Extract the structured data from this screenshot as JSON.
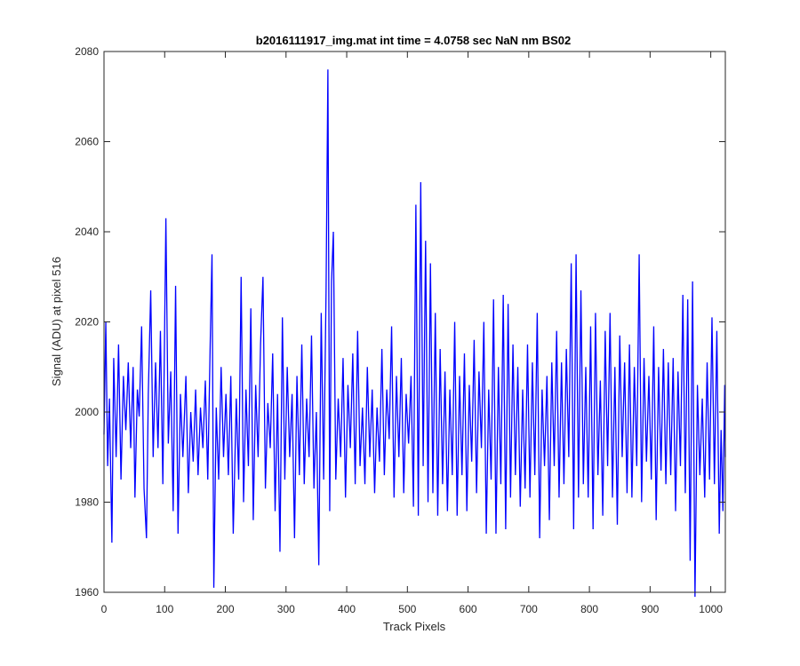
{
  "chart_data": {
    "type": "line",
    "title": "b2016111917_img.mat int time = 4.0758 sec  NaN nm BS02",
    "xlabel": "Track Pixels",
    "ylabel": "Signal (ADU) at pixel 516",
    "xlim": [
      0,
      1024
    ],
    "ylim": [
      1960,
      2080
    ],
    "xticks": [
      0,
      100,
      200,
      300,
      400,
      500,
      600,
      700,
      800,
      900,
      1000
    ],
    "yticks": [
      1960,
      1980,
      2000,
      2020,
      2040,
      2060,
      2080
    ],
    "grid": false,
    "series": [
      {
        "color": "#0000ff",
        "points": [
          [
            0,
            1995
          ],
          [
            3,
            2020
          ],
          [
            6,
            1988
          ],
          [
            9,
            2003
          ],
          [
            13,
            1971
          ],
          [
            16,
            2012
          ],
          [
            20,
            1990
          ],
          [
            24,
            2015
          ],
          [
            28,
            1985
          ],
          [
            32,
            2008
          ],
          [
            36,
            1996
          ],
          [
            40,
            2011
          ],
          [
            44,
            1992
          ],
          [
            48,
            2010
          ],
          [
            51,
            1981
          ],
          [
            55,
            2005
          ],
          [
            58,
            1999
          ],
          [
            62,
            2019
          ],
          [
            66,
            1983
          ],
          [
            70,
            1972
          ],
          [
            73,
            2004
          ],
          [
            77,
            2027
          ],
          [
            81,
            1990
          ],
          [
            85,
            2011
          ],
          [
            89,
            1992
          ],
          [
            93,
            2018
          ],
          [
            97,
            1984
          ],
          [
            102,
            2043
          ],
          [
            106,
            1993
          ],
          [
            110,
            2009
          ],
          [
            114,
            1978
          ],
          [
            118,
            2028
          ],
          [
            122,
            1973
          ],
          [
            126,
            2004
          ],
          [
            130,
            1990
          ],
          [
            135,
            2008
          ],
          [
            139,
            1982
          ],
          [
            143,
            2000
          ],
          [
            147,
            1989
          ],
          [
            151,
            2005
          ],
          [
            155,
            1986
          ],
          [
            159,
            2001
          ],
          [
            163,
            1992
          ],
          [
            167,
            2007
          ],
          [
            171,
            1985
          ],
          [
            175,
            2015
          ],
          [
            178,
            2035
          ],
          [
            181,
            1961
          ],
          [
            185,
            2001
          ],
          [
            189,
            1985
          ],
          [
            193,
            2010
          ],
          [
            197,
            1990
          ],
          [
            201,
            2004
          ],
          [
            205,
            1986
          ],
          [
            209,
            2008
          ],
          [
            213,
            1973
          ],
          [
            218,
            2003
          ],
          [
            222,
            1985
          ],
          [
            226,
            2030
          ],
          [
            230,
            1980
          ],
          [
            234,
            2005
          ],
          [
            238,
            1988
          ],
          [
            242,
            2023
          ],
          [
            246,
            1976
          ],
          [
            250,
            2006
          ],
          [
            254,
            1990
          ],
          [
            258,
            2015
          ],
          [
            262,
            2030
          ],
          [
            266,
            1983
          ],
          [
            270,
            2002
          ],
          [
            274,
            1992
          ],
          [
            278,
            2013
          ],
          [
            282,
            1978
          ],
          [
            286,
            2004
          ],
          [
            290,
            1969
          ],
          [
            294,
            2021
          ],
          [
            298,
            1985
          ],
          [
            302,
            2010
          ],
          [
            306,
            1990
          ],
          [
            310,
            2004
          ],
          [
            314,
            1972
          ],
          [
            318,
            2008
          ],
          [
            322,
            1986
          ],
          [
            326,
            2015
          ],
          [
            330,
            1984
          ],
          [
            334,
            2003
          ],
          [
            338,
            1990
          ],
          [
            342,
            2017
          ],
          [
            346,
            1983
          ],
          [
            350,
            2000
          ],
          [
            354,
            1966
          ],
          [
            358,
            2022
          ],
          [
            362,
            1985
          ],
          [
            366,
            2027
          ],
          [
            369,
            2076
          ],
          [
            372,
            1978
          ],
          [
            375,
            2029
          ],
          [
            378,
            2040
          ],
          [
            382,
            1985
          ],
          [
            386,
            2003
          ],
          [
            390,
            1990
          ],
          [
            394,
            2012
          ],
          [
            398,
            1981
          ],
          [
            402,
            2006
          ],
          [
            406,
            1992
          ],
          [
            410,
            2013
          ],
          [
            414,
            1984
          ],
          [
            418,
            2018
          ],
          [
            422,
            1988
          ],
          [
            426,
            2001
          ],
          [
            430,
            1984
          ],
          [
            434,
            2010
          ],
          [
            438,
            1990
          ],
          [
            442,
            2005
          ],
          [
            446,
            1982
          ],
          [
            450,
            2001
          ],
          [
            454,
            1989
          ],
          [
            458,
            2014
          ],
          [
            462,
            1986
          ],
          [
            466,
            2005
          ],
          [
            470,
            1994
          ],
          [
            474,
            2019
          ],
          [
            478,
            1981
          ],
          [
            482,
            2008
          ],
          [
            486,
            1990
          ],
          [
            490,
            2012
          ],
          [
            494,
            1982
          ],
          [
            498,
            2004
          ],
          [
            502,
            1993
          ],
          [
            506,
            2008
          ],
          [
            510,
            1979
          ],
          [
            514,
            2046
          ],
          [
            518,
            1977
          ],
          [
            522,
            2051
          ],
          [
            526,
            1988
          ],
          [
            530,
            2038
          ],
          [
            534,
            1980
          ],
          [
            538,
            2033
          ],
          [
            542,
            1982
          ],
          [
            546,
            2022
          ],
          [
            550,
            1977
          ],
          [
            554,
            2014
          ],
          [
            558,
            1984
          ],
          [
            562,
            2009
          ],
          [
            566,
            1978
          ],
          [
            570,
            2005
          ],
          [
            574,
            1986
          ],
          [
            578,
            2020
          ],
          [
            582,
            1977
          ],
          [
            586,
            2008
          ],
          [
            590,
            1986
          ],
          [
            594,
            2013
          ],
          [
            598,
            1978
          ],
          [
            602,
            2006
          ],
          [
            606,
            1989
          ],
          [
            610,
            2016
          ],
          [
            614,
            1982
          ],
          [
            618,
            2009
          ],
          [
            622,
            1992
          ],
          [
            626,
            2020
          ],
          [
            630,
            1973
          ],
          [
            634,
            2005
          ],
          [
            638,
            1985
          ],
          [
            642,
            2025
          ],
          [
            646,
            1973
          ],
          [
            650,
            2010
          ],
          [
            654,
            1984
          ],
          [
            658,
            2026
          ],
          [
            662,
            1974
          ],
          [
            666,
            2024
          ],
          [
            670,
            1981
          ],
          [
            674,
            2015
          ],
          [
            678,
            1986
          ],
          [
            682,
            2010
          ],
          [
            686,
            1979
          ],
          [
            690,
            2005
          ],
          [
            694,
            1983
          ],
          [
            698,
            2015
          ],
          [
            702,
            1981
          ],
          [
            706,
            2011
          ],
          [
            710,
            1986
          ],
          [
            714,
            2022
          ],
          [
            718,
            1972
          ],
          [
            722,
            2005
          ],
          [
            726,
            1988
          ],
          [
            730,
            2008
          ],
          [
            734,
            1976
          ],
          [
            738,
            2011
          ],
          [
            742,
            1988
          ],
          [
            746,
            2018
          ],
          [
            750,
            1981
          ],
          [
            754,
            2011
          ],
          [
            758,
            1984
          ],
          [
            762,
            2014
          ],
          [
            766,
            1990
          ],
          [
            770,
            2033
          ],
          [
            774,
            1974
          ],
          [
            778,
            2035
          ],
          [
            782,
            1981
          ],
          [
            786,
            2027
          ],
          [
            790,
            1984
          ],
          [
            794,
            2010
          ],
          [
            798,
            1981
          ],
          [
            802,
            2019
          ],
          [
            806,
            1974
          ],
          [
            810,
            2022
          ],
          [
            814,
            1986
          ],
          [
            818,
            2007
          ],
          [
            822,
            1977
          ],
          [
            826,
            2018
          ],
          [
            830,
            1988
          ],
          [
            834,
            2022
          ],
          [
            838,
            1981
          ],
          [
            842,
            2010
          ],
          [
            846,
            1975
          ],
          [
            850,
            2017
          ],
          [
            854,
            1990
          ],
          [
            858,
            2011
          ],
          [
            862,
            1982
          ],
          [
            866,
            2015
          ],
          [
            870,
            1981
          ],
          [
            874,
            2010
          ],
          [
            878,
            1988
          ],
          [
            882,
            2035
          ],
          [
            886,
            1980
          ],
          [
            890,
            2012
          ],
          [
            894,
            1989
          ],
          [
            898,
            2008
          ],
          [
            902,
            1985
          ],
          [
            906,
            2019
          ],
          [
            910,
            1976
          ],
          [
            914,
            2010
          ],
          [
            918,
            1987
          ],
          [
            922,
            2014
          ],
          [
            926,
            1984
          ],
          [
            930,
            2011
          ],
          [
            934,
            1986
          ],
          [
            938,
            2012
          ],
          [
            942,
            1978
          ],
          [
            946,
            2009
          ],
          [
            950,
            1988
          ],
          [
            954,
            2026
          ],
          [
            958,
            1982
          ],
          [
            962,
            2025
          ],
          [
            966,
            1967
          ],
          [
            970,
            2029
          ],
          [
            974,
            1959
          ],
          [
            978,
            2006
          ],
          [
            982,
            1986
          ],
          [
            986,
            2003
          ],
          [
            990,
            1981
          ],
          [
            994,
            2011
          ],
          [
            998,
            1985
          ],
          [
            1002,
            2021
          ],
          [
            1006,
            1984
          ],
          [
            1010,
            2018
          ],
          [
            1014,
            1973
          ],
          [
            1017,
            1996
          ],
          [
            1020,
            1978
          ],
          [
            1023,
            2006
          ],
          [
            1024,
            1990
          ]
        ]
      }
    ]
  }
}
